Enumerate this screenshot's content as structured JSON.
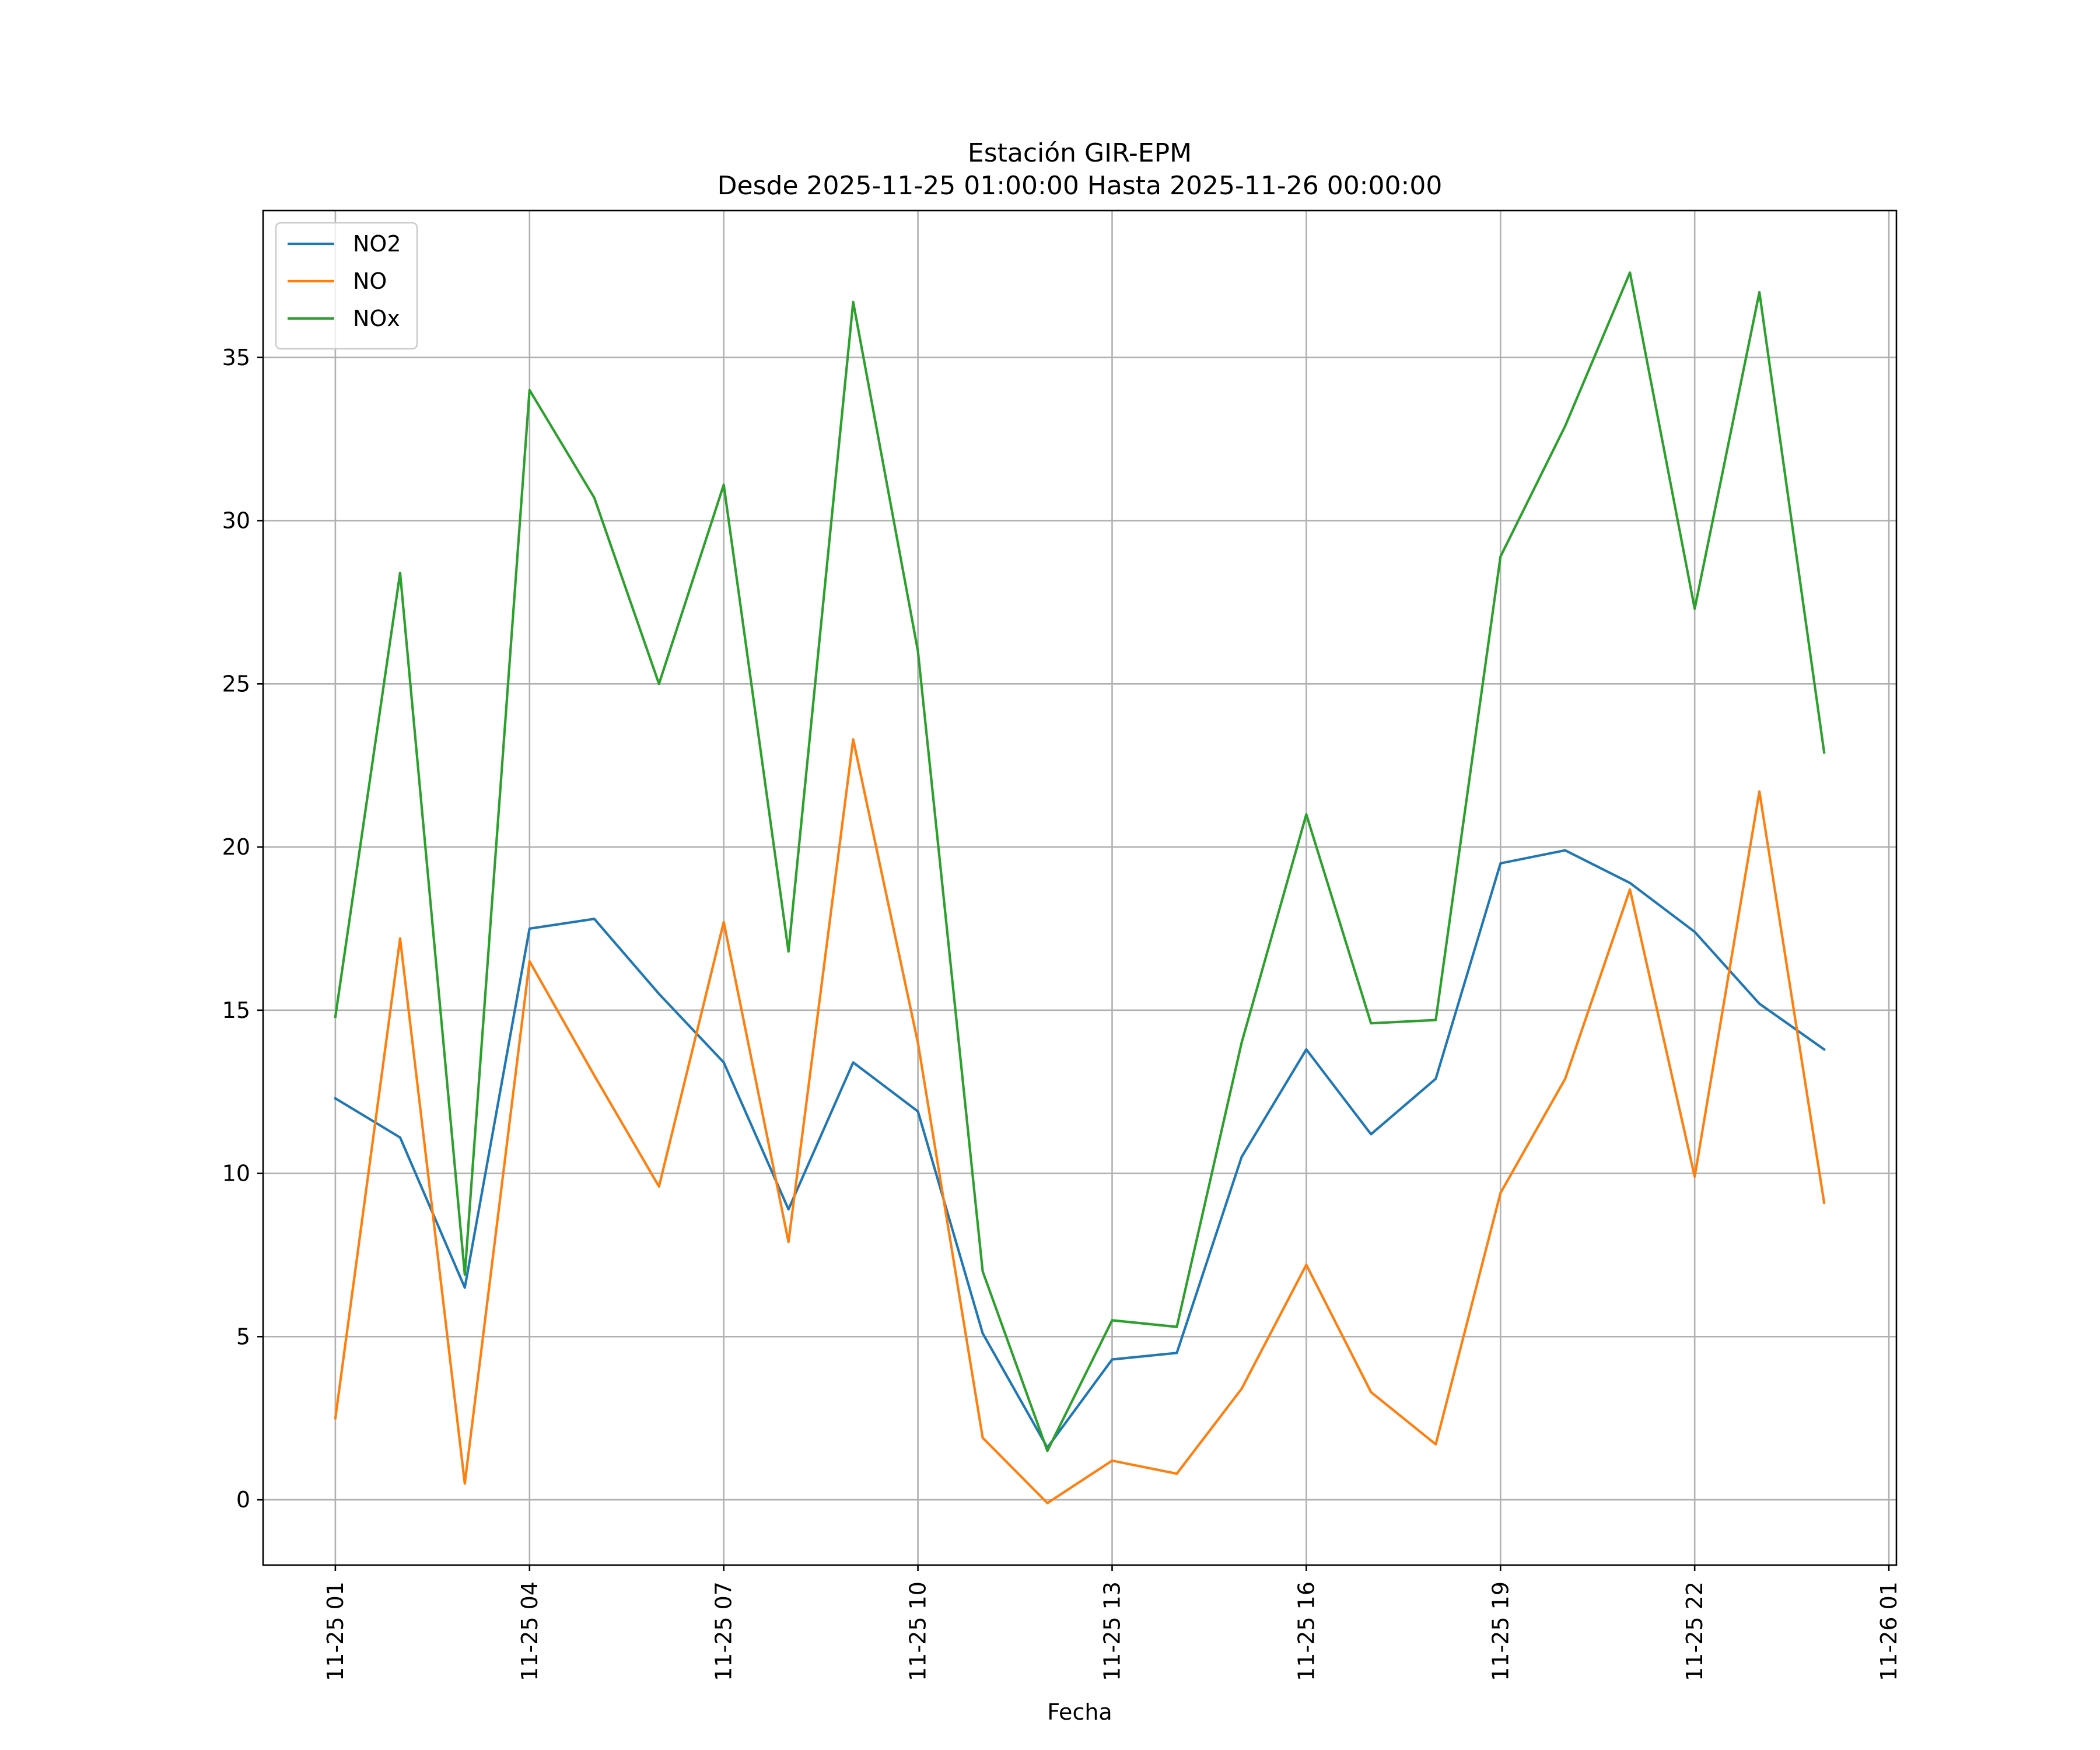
{
  "chart_data": {
    "type": "line",
    "title": "Estación GIR-EPM",
    "subtitle": "Desde 2025-11-25 01:00:00 Hasta 2025-11-26 00:00:00",
    "xlabel": "Fecha",
    "ylabel": "",
    "ylim": [
      -2.0,
      39.5
    ],
    "xlim": [
      "2025-11-24T23:53:00",
      "2025-11-26T01:07:00"
    ],
    "yticks": [
      0,
      5,
      10,
      15,
      20,
      25,
      30,
      35
    ],
    "xticks": [
      {
        "t": "2025-11-25T01:00:00",
        "label": "11-25 01"
      },
      {
        "t": "2025-11-25T04:00:00",
        "label": "11-25 04"
      },
      {
        "t": "2025-11-25T07:00:00",
        "label": "11-25 07"
      },
      {
        "t": "2025-11-25T10:00:00",
        "label": "11-25 10"
      },
      {
        "t": "2025-11-25T13:00:00",
        "label": "11-25 13"
      },
      {
        "t": "2025-11-25T16:00:00",
        "label": "11-25 16"
      },
      {
        "t": "2025-11-25T19:00:00",
        "label": "11-25 19"
      },
      {
        "t": "2025-11-25T22:00:00",
        "label": "11-25 22"
      },
      {
        "t": "2025-11-26T01:00:00",
        "label": "11-26 01"
      }
    ],
    "grid": true,
    "legend_position": "top-left",
    "x": [
      "2025-11-25T01:00:00",
      "2025-11-25T02:00:00",
      "2025-11-25T03:00:00",
      "2025-11-25T04:00:00",
      "2025-11-25T05:00:00",
      "2025-11-25T06:00:00",
      "2025-11-25T07:00:00",
      "2025-11-25T08:00:00",
      "2025-11-25T09:00:00",
      "2025-11-25T10:00:00",
      "2025-11-25T11:00:00",
      "2025-11-25T12:00:00",
      "2025-11-25T13:00:00",
      "2025-11-25T14:00:00",
      "2025-11-25T15:00:00",
      "2025-11-25T16:00:00",
      "2025-11-25T17:00:00",
      "2025-11-25T18:00:00",
      "2025-11-25T19:00:00",
      "2025-11-25T20:00:00",
      "2025-11-25T21:00:00",
      "2025-11-25T22:00:00",
      "2025-11-25T23:00:00",
      "2025-11-26T00:00:00"
    ],
    "series": [
      {
        "name": "NO2",
        "color": "#1f77b4",
        "values": [
          12.3,
          11.1,
          6.5,
          17.5,
          17.8,
          15.5,
          13.4,
          8.9,
          13.4,
          11.9,
          5.1,
          1.6,
          4.3,
          4.5,
          10.5,
          13.8,
          11.2,
          12.9,
          19.5,
          19.9,
          18.9,
          17.4,
          15.2,
          13.8
        ]
      },
      {
        "name": "NO",
        "color": "#ff7f0e",
        "values": [
          2.5,
          17.2,
          0.5,
          16.5,
          13.0,
          9.6,
          17.7,
          7.9,
          23.3,
          14.0,
          1.9,
          -0.1,
          1.2,
          0.8,
          3.4,
          7.2,
          3.3,
          1.7,
          9.4,
          12.9,
          18.7,
          9.9,
          21.7,
          9.1
        ]
      },
      {
        "name": "NOx",
        "color": "#2ca02c",
        "values": [
          14.8,
          28.4,
          6.9,
          34.0,
          30.7,
          25.0,
          31.1,
          16.8,
          36.7,
          26.0,
          7.0,
          1.5,
          5.5,
          5.3,
          14.0,
          21.0,
          14.6,
          14.7,
          28.9,
          32.9,
          37.6,
          27.3,
          37.0,
          22.9
        ]
      }
    ]
  }
}
